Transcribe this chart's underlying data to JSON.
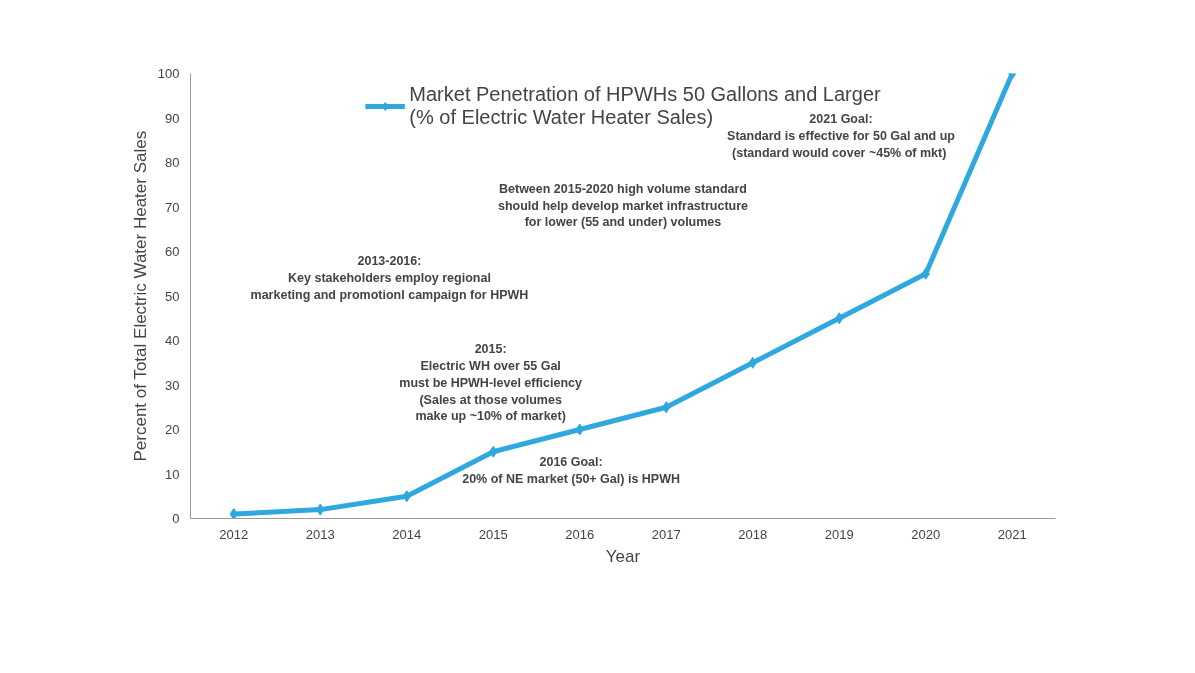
{
  "chart_data": {
    "type": "line",
    "xlabel": "Year",
    "ylabel": "Percent of Total Electric Water Heater Sales",
    "categories": [
      "2012",
      "2013",
      "2014",
      "2015",
      "2016",
      "2017",
      "2018",
      "2019",
      "2020",
      "2021"
    ],
    "series": [
      {
        "name": "Market Penetration of HPWHs 50 Gallons and Larger\n(% of Electric Water Heater Sales)",
        "color": "#2ea8df",
        "values": [
          1,
          2,
          5,
          15,
          20,
          25,
          35,
          45,
          55,
          100
        ]
      }
    ],
    "ylim": [
      0,
      100
    ],
    "yticks": [
      0,
      10,
      20,
      30,
      40,
      50,
      60,
      70,
      80,
      90,
      100
    ],
    "marker": "diamond",
    "line_style": "solid",
    "grid": false,
    "legend": "top",
    "annotations": [
      "2013-2016:\nKey stakeholders employ regional\nmarketing and promotionl campaign for HPWH",
      "2015:\nElectric WH over 55 Gal\nmust be HPWH-level efficiency\n(Sales at those volumes\nmake up ~10% of market)",
      "2016 Goal:\n20% of NE market (50+ Gal) is HPWH",
      "Between 2015-2020 high volume standard\nshould help develop market infrastructure\nfor lower (55 and under) volumes",
      "2021 Goal:\nStandard is effective for 50 Gal and up\n (standard would cover ~45% of mkt)"
    ]
  }
}
